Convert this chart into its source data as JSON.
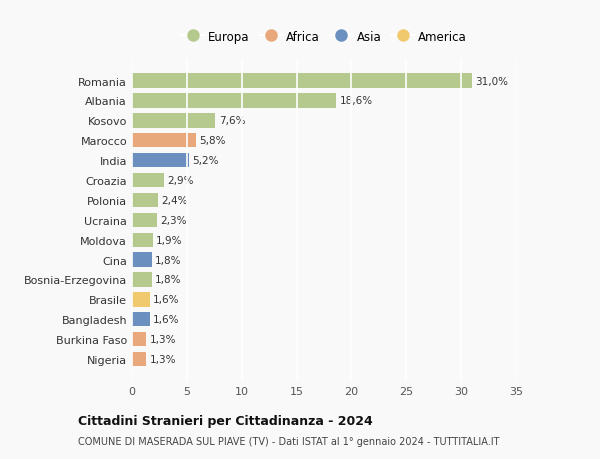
{
  "categories": [
    "Romania",
    "Albania",
    "Kosovo",
    "Marocco",
    "India",
    "Croazia",
    "Polonia",
    "Ucraina",
    "Moldova",
    "Cina",
    "Bosnia-Erzegovina",
    "Brasile",
    "Bangladesh",
    "Burkina Faso",
    "Nigeria"
  ],
  "values": [
    31.0,
    18.6,
    7.6,
    5.8,
    5.2,
    2.9,
    2.4,
    2.3,
    1.9,
    1.8,
    1.8,
    1.6,
    1.6,
    1.3,
    1.3
  ],
  "labels": [
    "31,0%",
    "18,6%",
    "7,6%",
    "5,8%",
    "5,2%",
    "2,9%",
    "2,4%",
    "2,3%",
    "1,9%",
    "1,8%",
    "1,8%",
    "1,6%",
    "1,6%",
    "1,3%",
    "1,3%"
  ],
  "continents": [
    "Europa",
    "Europa",
    "Europa",
    "Africa",
    "Asia",
    "Europa",
    "Europa",
    "Europa",
    "Europa",
    "Asia",
    "Europa",
    "America",
    "Asia",
    "Africa",
    "Africa"
  ],
  "continent_colors": {
    "Europa": "#b5c98e",
    "Africa": "#e8a87c",
    "Asia": "#6b8fbf",
    "America": "#f0c96e"
  },
  "legend_order": [
    "Europa",
    "Africa",
    "Asia",
    "America"
  ],
  "title1": "Cittadini Stranieri per Cittadinanza - 2024",
  "title2": "COMUNE DI MASERADA SUL PIAVE (TV) - Dati ISTAT al 1° gennaio 2024 - TUTTITALIA.IT",
  "xlim": [
    0,
    35
  ],
  "xticks": [
    0,
    5,
    10,
    15,
    20,
    25,
    30,
    35
  ],
  "background_color": "#f9f9f9",
  "grid_color": "#ffffff"
}
